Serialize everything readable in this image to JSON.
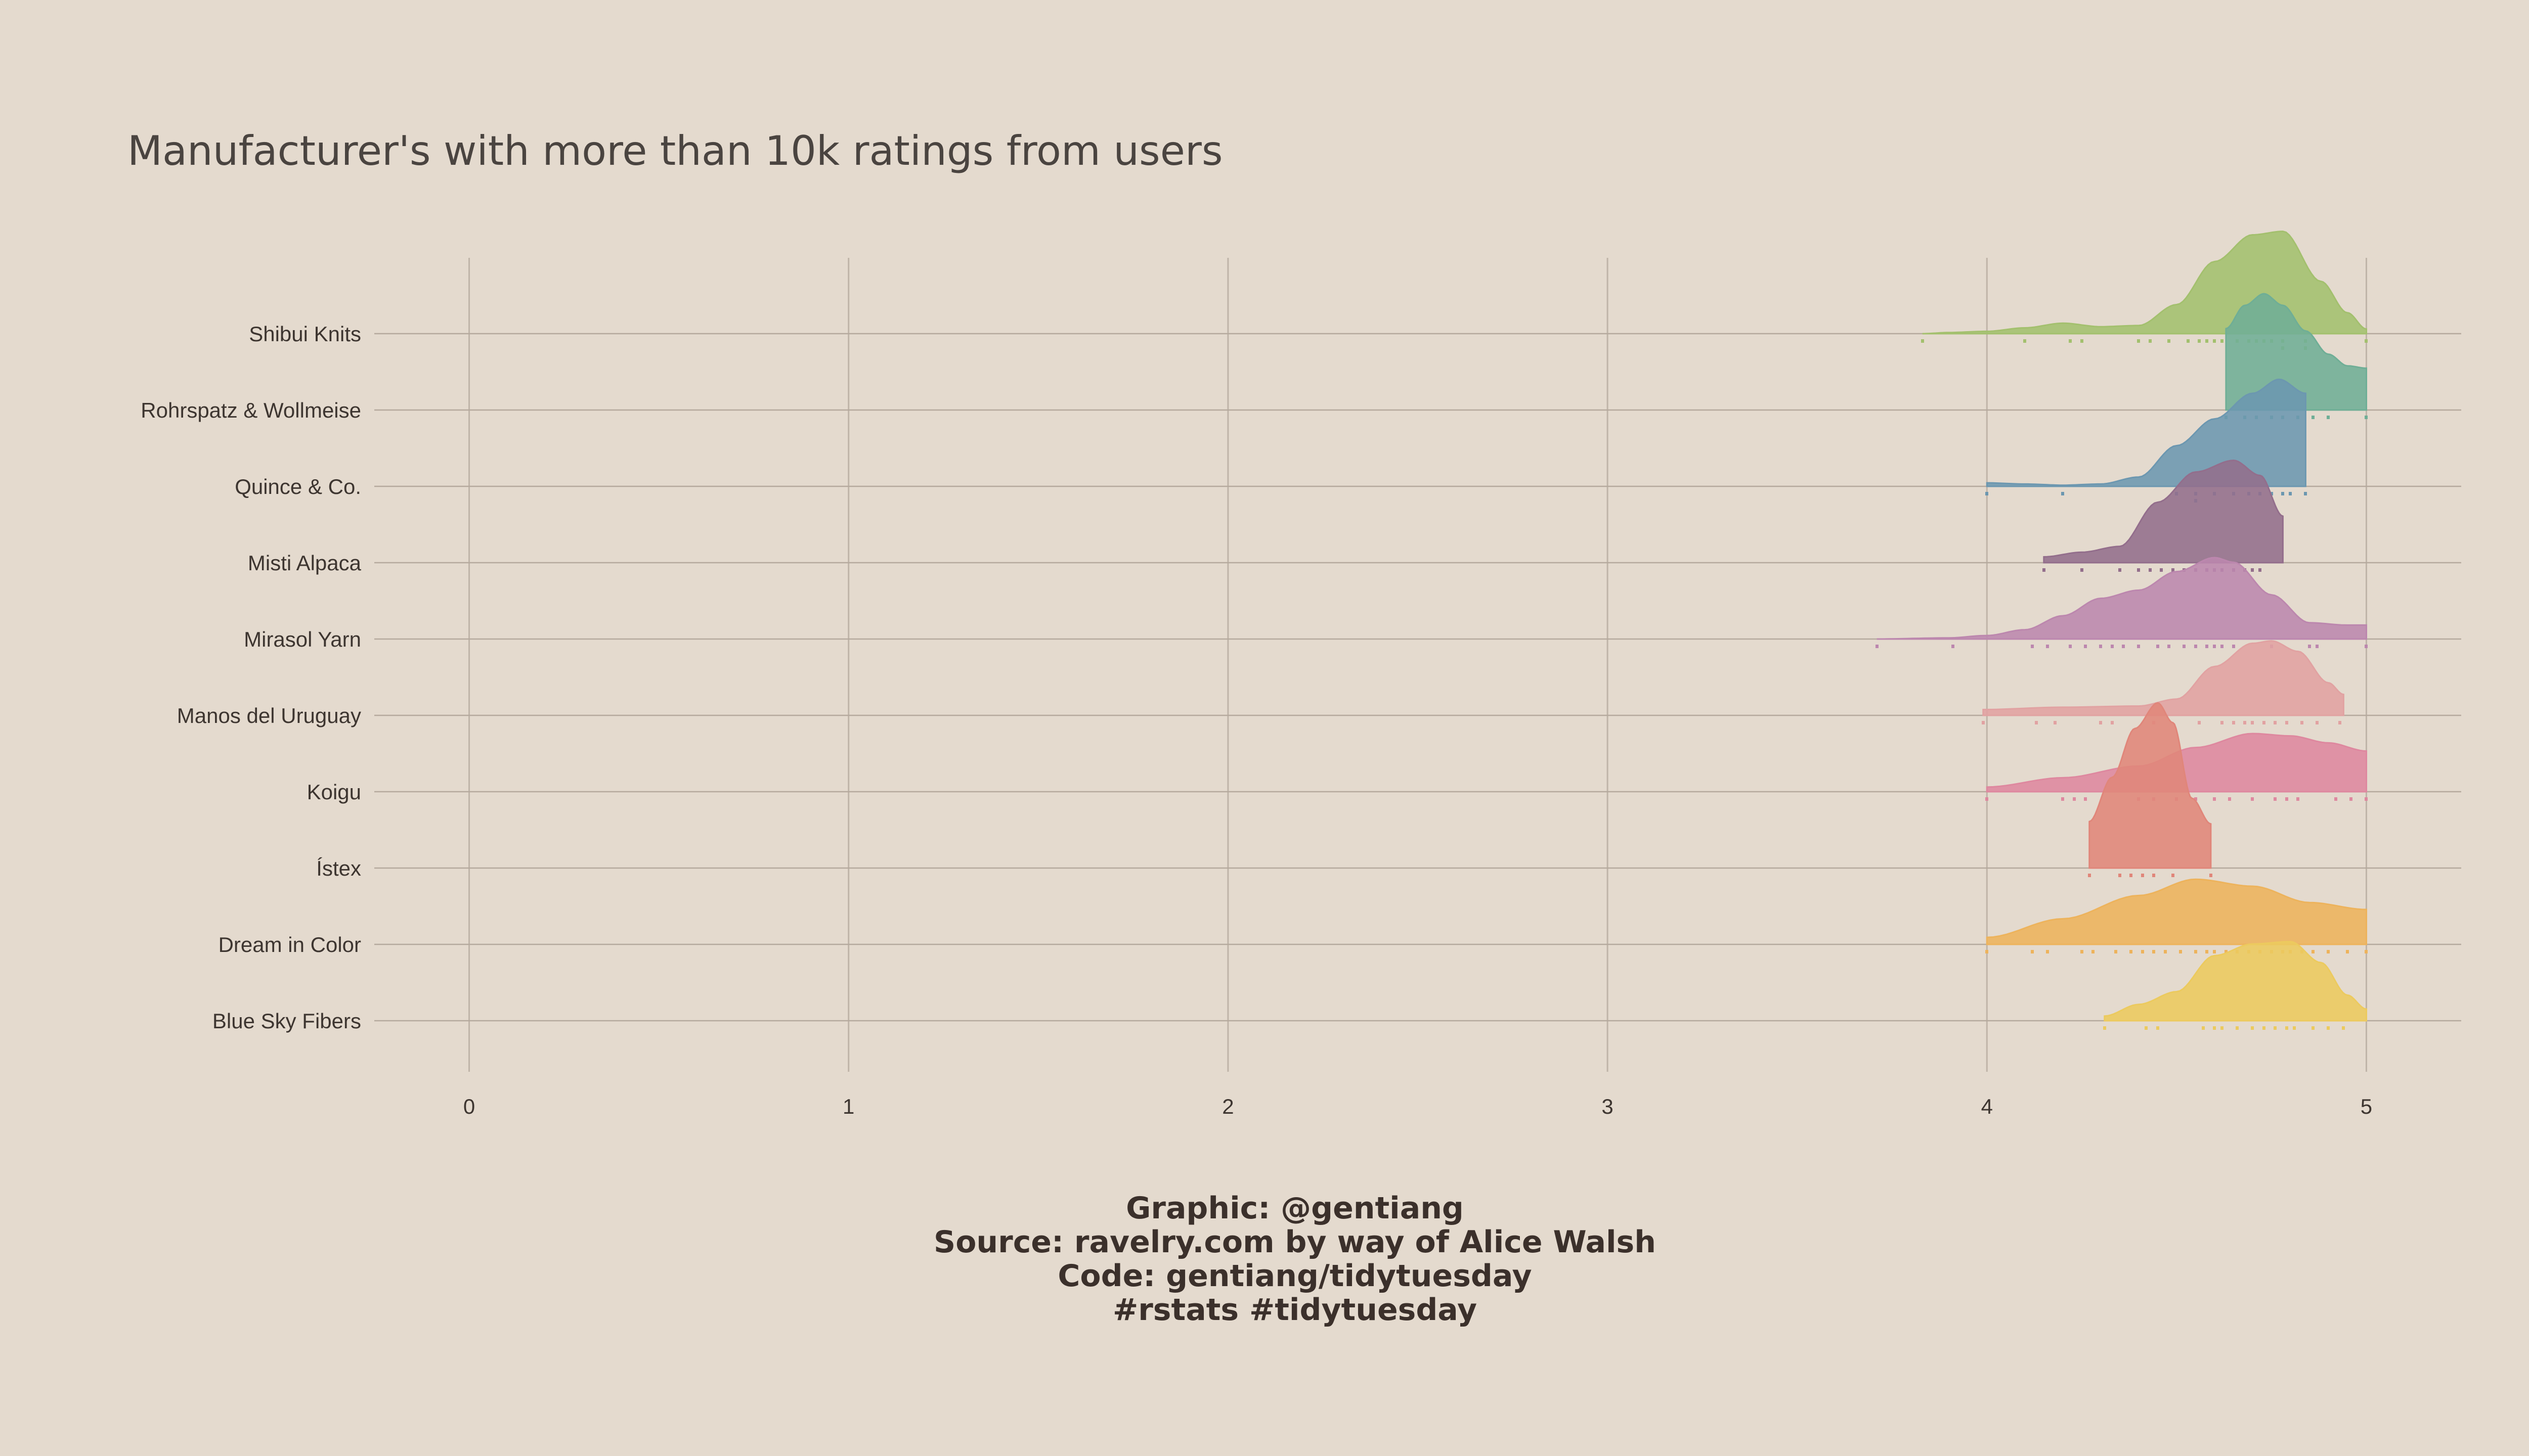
{
  "chart_data": {
    "type": "ridgeline",
    "title": "Manufacturer's with more than 10k ratings from users",
    "xlabel": "",
    "ylabel": "",
    "xlim": [
      -0.25,
      5.25
    ],
    "x_ticks": [
      0,
      1,
      2,
      3,
      4,
      5
    ],
    "grid": true,
    "legend": "none",
    "categories": [
      "Shibui Knits",
      "Rohrspatz & Wollmeise",
      "Quince & Co.",
      "Misti Alpaca",
      "Mirasol Yarn",
      "Manos del Uruguay",
      "Koigu",
      "Ístex",
      "Dream in Color",
      "Blue Sky Fibers"
    ],
    "series": [
      {
        "label": "Shibui Knits",
        "color": "#a3c06e",
        "range": [
          3.83,
          5.0
        ],
        "density": [
          [
            3.83,
            0.0
          ],
          [
            3.9,
            0.01
          ],
          [
            4.0,
            0.02
          ],
          [
            4.1,
            0.05
          ],
          [
            4.2,
            0.09
          ],
          [
            4.3,
            0.06
          ],
          [
            4.4,
            0.07
          ],
          [
            4.5,
            0.25
          ],
          [
            4.6,
            0.62
          ],
          [
            4.7,
            0.85
          ],
          [
            4.78,
            0.88
          ],
          [
            4.88,
            0.45
          ],
          [
            4.95,
            0.18
          ],
          [
            5.0,
            0.04
          ]
        ],
        "points": [
          3.83,
          4.1,
          4.22,
          4.25,
          4.4,
          4.43,
          4.48,
          4.53,
          4.56,
          4.58,
          4.6,
          4.62,
          4.66,
          4.69,
          4.71,
          4.73,
          4.75,
          4.78,
          4.78,
          4.84,
          4.84,
          5.0
        ]
      },
      {
        "label": "Rohrspatz & Wollmeise",
        "color": "#6fae96",
        "range": [
          4.63,
          5.0
        ],
        "density": [
          [
            4.63,
            0.7
          ],
          [
            4.68,
            0.9
          ],
          [
            4.73,
            1.0
          ],
          [
            4.78,
            0.9
          ],
          [
            4.84,
            0.68
          ],
          [
            4.9,
            0.48
          ],
          [
            4.95,
            0.38
          ],
          [
            5.0,
            0.36
          ]
        ],
        "points": [
          4.63,
          4.68,
          4.71,
          4.75,
          4.78,
          4.82,
          4.86,
          4.9,
          5.0
        ]
      },
      {
        "label": "Quince & Co.",
        "color": "#6c97b0",
        "range": [
          4.0,
          4.84
        ],
        "density": [
          [
            4.0,
            0.03
          ],
          [
            4.1,
            0.02
          ],
          [
            4.2,
            0.01
          ],
          [
            4.3,
            0.02
          ],
          [
            4.4,
            0.08
          ],
          [
            4.5,
            0.35
          ],
          [
            4.6,
            0.58
          ],
          [
            4.7,
            0.8
          ],
          [
            4.77,
            0.92
          ],
          [
            4.84,
            0.8
          ]
        ],
        "points": [
          4.0,
          4.2,
          4.5,
          4.55,
          4.55,
          4.6,
          4.65,
          4.69,
          4.72,
          4.75,
          4.78,
          4.8,
          4.84
        ]
      },
      {
        "label": "Misti Alpaca",
        "color": "#936e8c",
        "range": [
          4.15,
          4.78
        ],
        "density": [
          [
            4.15,
            0.05
          ],
          [
            4.25,
            0.09
          ],
          [
            4.35,
            0.14
          ],
          [
            4.45,
            0.52
          ],
          [
            4.55,
            0.78
          ],
          [
            4.65,
            0.88
          ],
          [
            4.72,
            0.75
          ],
          [
            4.78,
            0.4
          ]
        ],
        "points": [
          4.15,
          4.25,
          4.35,
          4.4,
          4.43,
          4.46,
          4.49,
          4.52,
          4.55,
          4.58,
          4.6,
          4.62,
          4.65,
          4.68,
          4.7,
          4.72
        ]
      },
      {
        "label": "Mirasol Yarn",
        "color": "#bc87ae",
        "range": [
          3.71,
          5.0
        ],
        "density": [
          [
            3.71,
            0.0
          ],
          [
            3.9,
            0.01
          ],
          [
            4.0,
            0.03
          ],
          [
            4.1,
            0.08
          ],
          [
            4.2,
            0.2
          ],
          [
            4.3,
            0.35
          ],
          [
            4.4,
            0.42
          ],
          [
            4.5,
            0.58
          ],
          [
            4.6,
            0.7
          ],
          [
            4.65,
            0.66
          ],
          [
            4.75,
            0.38
          ],
          [
            4.85,
            0.14
          ],
          [
            4.95,
            0.12
          ],
          [
            5.0,
            0.12
          ]
        ],
        "points": [
          3.71,
          3.91,
          4.12,
          4.16,
          4.22,
          4.26,
          4.3,
          4.33,
          4.36,
          4.4,
          4.45,
          4.48,
          4.52,
          4.55,
          4.58,
          4.6,
          4.62,
          4.65,
          4.75,
          4.85,
          4.87,
          5.0
        ]
      },
      {
        "label": "Manos del Uruguay",
        "color": "#e1a2a2",
        "range": [
          3.99,
          4.94
        ],
        "density": [
          [
            3.99,
            0.05
          ],
          [
            4.2,
            0.07
          ],
          [
            4.4,
            0.08
          ],
          [
            4.5,
            0.14
          ],
          [
            4.6,
            0.42
          ],
          [
            4.7,
            0.62
          ],
          [
            4.75,
            0.64
          ],
          [
            4.82,
            0.55
          ],
          [
            4.9,
            0.28
          ],
          [
            4.94,
            0.18
          ]
        ],
        "points": [
          3.99,
          4.13,
          4.18,
          4.3,
          4.33,
          4.44,
          4.56,
          4.62,
          4.65,
          4.68,
          4.7,
          4.73,
          4.76,
          4.79,
          4.83,
          4.87,
          4.93
        ]
      },
      {
        "label": "Koigu",
        "color": "#de889f",
        "range": [
          4.0,
          5.0
        ],
        "density": [
          [
            4.0,
            0.04
          ],
          [
            4.2,
            0.12
          ],
          [
            4.4,
            0.22
          ],
          [
            4.55,
            0.38
          ],
          [
            4.7,
            0.5
          ],
          [
            4.8,
            0.48
          ],
          [
            4.9,
            0.42
          ],
          [
            5.0,
            0.35
          ]
        ],
        "points": [
          4.0,
          4.2,
          4.23,
          4.26,
          4.4,
          4.44,
          4.5,
          4.55,
          4.6,
          4.64,
          4.7,
          4.76,
          4.79,
          4.82,
          4.92,
          4.96,
          5.0
        ]
      },
      {
        "label": "Ístex",
        "color": "#e0867a",
        "range": [
          4.27,
          4.59
        ],
        "density": [
          [
            4.27,
            0.4
          ],
          [
            4.33,
            0.78
          ],
          [
            4.39,
            1.2
          ],
          [
            4.45,
            1.42
          ],
          [
            4.49,
            1.25
          ],
          [
            4.54,
            0.6
          ],
          [
            4.59,
            0.38
          ]
        ],
        "points": [
          4.27,
          4.35,
          4.38,
          4.41,
          4.44,
          4.49,
          4.59
        ]
      },
      {
        "label": "Dream in Color",
        "color": "#edb35c",
        "range": [
          4.0,
          5.0
        ],
        "density": [
          [
            4.0,
            0.06
          ],
          [
            4.2,
            0.22
          ],
          [
            4.4,
            0.42
          ],
          [
            4.55,
            0.56
          ],
          [
            4.7,
            0.5
          ],
          [
            4.85,
            0.36
          ],
          [
            5.0,
            0.3
          ]
        ],
        "points": [
          4.0,
          4.12,
          4.16,
          4.25,
          4.28,
          4.34,
          4.38,
          4.41,
          4.44,
          4.47,
          4.51,
          4.55,
          4.58,
          4.6,
          4.63,
          4.66,
          4.69,
          4.72,
          4.75,
          4.78,
          4.8,
          4.83,
          4.86,
          4.9,
          4.95,
          5.0
        ]
      },
      {
        "label": "Blue Sky Fibers",
        "color": "#ecca5e",
        "range": [
          4.31,
          5.0
        ],
        "density": [
          [
            4.31,
            0.04
          ],
          [
            4.4,
            0.14
          ],
          [
            4.5,
            0.25
          ],
          [
            4.6,
            0.56
          ],
          [
            4.7,
            0.66
          ],
          [
            4.8,
            0.68
          ],
          [
            4.88,
            0.5
          ],
          [
            4.95,
            0.22
          ],
          [
            5.0,
            0.1
          ]
        ],
        "points": [
          4.31,
          4.42,
          4.45,
          4.57,
          4.6,
          4.62,
          4.66,
          4.7,
          4.73,
          4.76,
          4.79,
          4.81,
          4.86,
          4.9,
          4.94
        ]
      }
    ]
  },
  "caption": {
    "lines": [
      "Graphic: @gentiang",
      "Source: ravelry.com by way of Alice Walsh",
      "Code: gentiang/tidytuesday",
      "#rstats #tidytuesday"
    ]
  }
}
